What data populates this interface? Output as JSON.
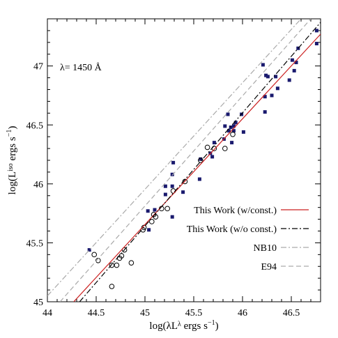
{
  "chart_data": {
    "type": "scatter",
    "annotation": "λ= 1450 Å",
    "xlabel": [
      "log(λL",
      "λ",
      " ergs s",
      "−1",
      ")"
    ],
    "ylabel": [
      "log(L",
      "iso",
      " ergs s",
      "−1",
      ")"
    ],
    "xlim": [
      44,
      46.8
    ],
    "ylim": [
      45,
      47.4
    ],
    "xticks": [
      44,
      44.5,
      45,
      45.5,
      46,
      46.5
    ],
    "yticks": [
      45,
      45.5,
      46,
      46.5,
      47
    ],
    "xminor": [
      44.1,
      44.2,
      44.3,
      44.4,
      44.6,
      44.7,
      44.8,
      44.9,
      45.1,
      45.2,
      45.3,
      45.4,
      45.6,
      45.7,
      45.8,
      45.9,
      46.1,
      46.2,
      46.3,
      46.4,
      46.6,
      46.7
    ],
    "yminor": [
      45.1,
      45.2,
      45.3,
      45.4,
      45.6,
      45.7,
      45.8,
      45.9,
      46.1,
      46.2,
      46.3,
      46.4,
      46.6,
      46.7,
      46.8,
      46.9,
      47.1,
      47.2,
      47.3
    ],
    "series": [
      {
        "marker": "square",
        "color": "#1a1a6e",
        "x": [
          44.43,
          45.03,
          45.04,
          45.1,
          45.21,
          45.21,
          45.28,
          45.28,
          45.28,
          45.29,
          45.39,
          45.56,
          45.57,
          45.67,
          45.69,
          45.71,
          45.81,
          45.82,
          45.85,
          45.86,
          45.88,
          45.89,
          45.91,
          45.91,
          45.93,
          45.99,
          46.01,
          46.21,
          46.23,
          46.23,
          46.24,
          46.26,
          46.3,
          46.34,
          46.36,
          46.48,
          46.51,
          46.53,
          46.55,
          46.57,
          46.76,
          46.76
        ],
        "values": [
          45.44,
          45.77,
          45.61,
          45.78,
          45.91,
          45.98,
          45.72,
          45.98,
          46.08,
          46.18,
          45.93,
          46.04,
          46.21,
          46.26,
          46.23,
          46.35,
          46.38,
          46.49,
          46.59,
          46.45,
          46.48,
          46.35,
          46.45,
          46.49,
          46.52,
          46.59,
          46.44,
          47.01,
          46.74,
          46.61,
          46.92,
          46.91,
          46.75,
          46.91,
          46.81,
          46.88,
          47.05,
          46.96,
          47.03,
          47.15,
          47.3,
          47.19
        ]
      },
      {
        "marker": "circle",
        "color": "#000000",
        "x": [
          44.48,
          44.52,
          44.66,
          44.71,
          44.74,
          44.76,
          44.79,
          44.86,
          44.66,
          44.98,
          44.99,
          45.07,
          45.09,
          45.11,
          45.17,
          45.23,
          45.29,
          45.41,
          45.57,
          45.64,
          45.71,
          45.82,
          45.9
        ],
        "values": [
          45.4,
          45.35,
          45.31,
          45.31,
          45.37,
          45.39,
          45.44,
          45.33,
          45.13,
          45.61,
          45.63,
          45.68,
          45.74,
          45.72,
          45.79,
          45.79,
          45.94,
          46.02,
          46.2,
          46.31,
          46.3,
          46.3,
          46.42
        ]
      },
      {
        "name": "This Work (w/const.)",
        "line": "solid",
        "color": "#cc2222",
        "x": [
          44.27,
          46.8
        ],
        "values": [
          45,
          47.27
        ]
      },
      {
        "name": "This Work (w/o const.)",
        "line": "dashdot",
        "color": "#000000",
        "x": [
          44.33,
          46.8
        ],
        "values": [
          45,
          47.37
        ]
      },
      {
        "name": "NB10",
        "line": "dashdot",
        "color": "#aaaaaa",
        "x": [
          44.0,
          46.6
        ],
        "values": [
          45.05,
          47.4
        ]
      },
      {
        "name": "E94",
        "line": "dashed",
        "color": "#aaaaaa",
        "x": [
          44.13,
          46.7
        ],
        "values": [
          45,
          47.4
        ]
      }
    ]
  }
}
